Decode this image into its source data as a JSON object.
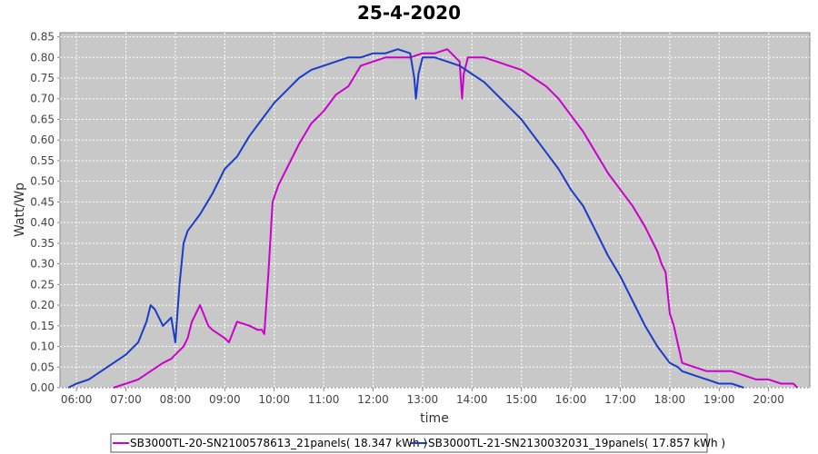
{
  "chart_data": {
    "type": "line",
    "title": "25-4-2020",
    "xlabel": "time",
    "ylabel": "Watt/Wp",
    "x_ticks": [
      "06:00",
      "07:00",
      "08:00",
      "09:00",
      "10:00",
      "11:00",
      "12:00",
      "13:00",
      "14:00",
      "15:00",
      "16:00",
      "17:00",
      "18:00",
      "19:00",
      "20:00"
    ],
    "xlim": [
      "05:40",
      "20:50"
    ],
    "y_ticks": [
      "0.00",
      "0.05",
      "0.10",
      "0.15",
      "0.20",
      "0.25",
      "0.30",
      "0.35",
      "0.40",
      "0.45",
      "0.50",
      "0.55",
      "0.60",
      "0.65",
      "0.70",
      "0.75",
      "0.80",
      "0.85"
    ],
    "ylim": [
      0,
      0.86
    ],
    "grid": true,
    "legend_position": "bottom",
    "plot_background": "#c8c8c8",
    "series": [
      {
        "name": "SB3000TL-20-SN2100578613_21panels( 18.347 kWh )",
        "color": "#cc00cc",
        "x": [
          "06:45",
          "07:00",
          "07:15",
          "07:30",
          "07:45",
          "07:55",
          "08:00",
          "08:10",
          "08:15",
          "08:20",
          "08:30",
          "08:40",
          "08:45",
          "09:00",
          "09:05",
          "09:15",
          "09:30",
          "09:40",
          "09:45",
          "09:48",
          "09:53",
          "09:58",
          "10:05",
          "10:15",
          "10:30",
          "10:45",
          "11:00",
          "11:15",
          "11:30",
          "11:45",
          "12:00",
          "12:15",
          "12:30",
          "12:45",
          "13:00",
          "13:15",
          "13:30",
          "13:45",
          "13:48",
          "13:50",
          "13:55",
          "14:00",
          "14:15",
          "14:30",
          "14:45",
          "15:00",
          "15:15",
          "15:30",
          "15:45",
          "16:00",
          "16:15",
          "16:30",
          "16:45",
          "17:00",
          "17:15",
          "17:30",
          "17:45",
          "17:50",
          "17:55",
          "18:00",
          "18:05",
          "18:15",
          "18:30",
          "18:45",
          "19:00",
          "19:15",
          "19:30",
          "19:45",
          "20:00",
          "20:15",
          "20:30",
          "20:35"
        ],
        "y": [
          0.0,
          0.01,
          0.02,
          0.04,
          0.06,
          0.07,
          0.08,
          0.1,
          0.12,
          0.16,
          0.2,
          0.15,
          0.14,
          0.12,
          0.11,
          0.16,
          0.15,
          0.14,
          0.14,
          0.13,
          0.28,
          0.45,
          0.49,
          0.53,
          0.59,
          0.64,
          0.67,
          0.71,
          0.73,
          0.78,
          0.79,
          0.8,
          0.8,
          0.8,
          0.81,
          0.81,
          0.82,
          0.79,
          0.7,
          0.76,
          0.8,
          0.8,
          0.8,
          0.79,
          0.78,
          0.77,
          0.75,
          0.73,
          0.7,
          0.66,
          0.62,
          0.57,
          0.52,
          0.48,
          0.44,
          0.39,
          0.33,
          0.3,
          0.28,
          0.18,
          0.15,
          0.06,
          0.05,
          0.04,
          0.04,
          0.04,
          0.03,
          0.02,
          0.02,
          0.01,
          0.01,
          0.0
        ]
      },
      {
        "name": "SB3000TL-21-SN2130032031_19panels( 17.857 kWh )",
        "color": "#1a3cc8",
        "x": [
          "05:50",
          "06:00",
          "06:15",
          "06:30",
          "06:45",
          "07:00",
          "07:15",
          "07:25",
          "07:30",
          "07:35",
          "07:45",
          "07:50",
          "07:55",
          "08:00",
          "08:05",
          "08:10",
          "08:15",
          "08:30",
          "08:45",
          "09:00",
          "09:15",
          "09:30",
          "09:45",
          "10:00",
          "10:15",
          "10:30",
          "10:45",
          "11:00",
          "11:15",
          "11:30",
          "11:45",
          "12:00",
          "12:15",
          "12:30",
          "12:45",
          "12:50",
          "12:52",
          "12:55",
          "13:00",
          "13:15",
          "13:30",
          "13:45",
          "14:00",
          "14:15",
          "14:30",
          "14:45",
          "15:00",
          "15:15",
          "15:30",
          "15:45",
          "16:00",
          "16:15",
          "16:30",
          "16:45",
          "17:00",
          "17:15",
          "17:30",
          "17:45",
          "18:00",
          "18:10",
          "18:15",
          "18:30",
          "18:45",
          "19:00",
          "19:15",
          "19:30"
        ],
        "y": [
          0.0,
          0.01,
          0.02,
          0.04,
          0.06,
          0.08,
          0.11,
          0.16,
          0.2,
          0.19,
          0.15,
          0.16,
          0.17,
          0.11,
          0.25,
          0.35,
          0.38,
          0.42,
          0.47,
          0.53,
          0.56,
          0.61,
          0.65,
          0.69,
          0.72,
          0.75,
          0.77,
          0.78,
          0.79,
          0.8,
          0.8,
          0.81,
          0.81,
          0.82,
          0.81,
          0.75,
          0.7,
          0.76,
          0.8,
          0.8,
          0.79,
          0.78,
          0.76,
          0.74,
          0.71,
          0.68,
          0.65,
          0.61,
          0.57,
          0.53,
          0.48,
          0.44,
          0.38,
          0.32,
          0.27,
          0.21,
          0.15,
          0.1,
          0.06,
          0.05,
          0.04,
          0.03,
          0.02,
          0.01,
          0.01,
          0.0
        ]
      }
    ]
  }
}
